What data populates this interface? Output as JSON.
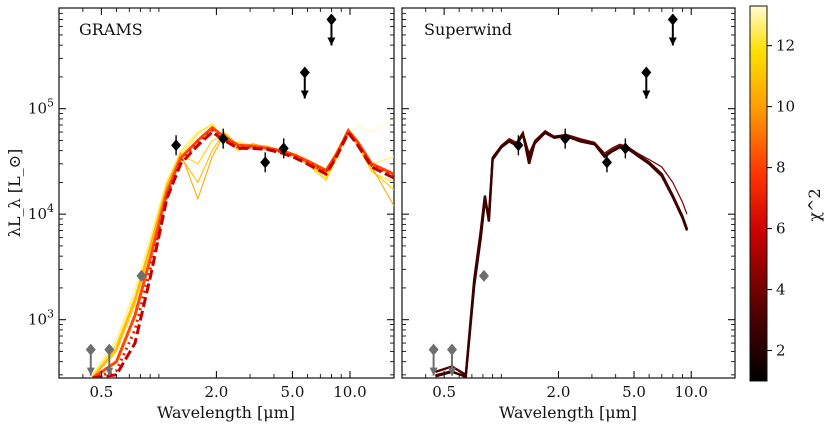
{
  "chart_data": {
    "type": "line",
    "shared": {
      "xscale": "log",
      "yscale": "log",
      "xlim": [
        0.3,
        17
      ],
      "ylim": [
        280,
        900000
      ],
      "xticks": [
        0.5,
        2.0,
        5.0,
        10.0
      ],
      "xtick_labels": [
        "0.5",
        "2.0",
        "5.0",
        "10.0"
      ],
      "yticks": [
        1000,
        10000,
        100000
      ],
      "ytick_labels": [
        "10^3",
        "10^4",
        "10^5"
      ],
      "xlabel": "Wavelength [μm]",
      "ylabel": "λL_λ [L_⊙]"
    },
    "panels": [
      {
        "title": "GRAMS",
        "series": [
          {
            "name": "grams-model-01",
            "chi2": 13.2,
            "x": [
              0.45,
              0.6,
              0.75,
              0.9,
              1.1,
              1.3,
              1.6,
              1.9,
              2.2,
              2.6,
              3.1,
              3.7,
              4.4,
              5.2,
              6.2,
              7.5,
              8.5,
              9.8,
              11,
              13,
              17
            ],
            "y": [
              300,
              600,
              1700,
              5500,
              20000,
              38000,
              62000,
              70000,
              52000,
              46000,
              42000,
              44000,
              41000,
              38000,
              32000,
              28000,
              30000,
              55000,
              70000,
              60000,
              80000
            ]
          },
          {
            "name": "grams-model-02",
            "chi2": 12.6,
            "x": [
              0.45,
              0.6,
              0.75,
              0.9,
              1.1,
              1.3,
              1.6,
              1.9,
              2.2,
              2.6,
              3.1,
              3.7,
              4.4,
              5.2,
              6.2,
              7.5,
              8.5,
              9.8,
              11,
              13,
              17
            ],
            "y": [
              300,
              650,
              1900,
              6000,
              21000,
              40000,
              60000,
              68000,
              55000,
              47000,
              44000,
              43000,
              40000,
              37000,
              30000,
              26000,
              40000,
              60000,
              50000,
              30000,
              35000
            ]
          },
          {
            "name": "grams-model-03",
            "chi2": 12.0,
            "x": [
              0.45,
              0.6,
              0.75,
              0.9,
              1.1,
              1.3,
              1.6,
              1.9,
              2.2,
              2.6,
              3.1,
              3.7,
              4.4,
              5.2,
              6.2,
              7.5,
              8.5,
              9.8,
              11,
              13,
              17
            ],
            "y": [
              280,
              520,
              1500,
              4800,
              18000,
              36000,
              58000,
              72000,
              50000,
              48000,
              45000,
              42000,
              39000,
              36000,
              29000,
              22000,
              35000,
              62000,
              45000,
              25000,
              20000
            ]
          },
          {
            "name": "grams-model-04",
            "chi2": 11.4,
            "x": [
              0.45,
              0.6,
              0.75,
              0.9,
              1.1,
              1.3,
              1.6,
              1.9,
              2.2,
              2.6,
              3.1,
              3.7,
              4.4,
              5.2,
              6.2,
              7.5,
              8.5,
              9.8,
              11,
              13,
              17
            ],
            "y": [
              290,
              580,
              1650,
              5200,
              19500,
              37000,
              30000,
              50000,
              56000,
              40000,
              47000,
              42000,
              38000,
              35000,
              28000,
              21000,
              34000,
              64000,
              43000,
              26000,
              17000
            ]
          },
          {
            "name": "grams-model-05",
            "chi2": 10.9,
            "x": [
              0.45,
              0.6,
              0.75,
              0.9,
              1.1,
              1.3,
              1.6,
              1.9,
              2.2,
              2.6,
              3.1,
              3.7,
              4.4,
              5.2,
              6.2,
              7.5,
              8.5,
              9.8,
              11,
              13,
              17
            ],
            "y": [
              280,
              500,
              1400,
              4600,
              17500,
              35000,
              20000,
              40000,
              60000,
              45000,
              46000,
              41000,
              39000,
              35000,
              29000,
              24000,
              38000,
              63000,
              46000,
              29000,
              24000
            ]
          },
          {
            "name": "grams-model-06",
            "chi2": 10.3,
            "x": [
              0.45,
              0.6,
              0.75,
              0.9,
              1.1,
              1.3,
              1.6,
              1.9,
              2.2,
              2.6,
              3.1,
              3.7,
              4.4,
              5.2,
              6.2,
              7.5,
              8.5,
              9.8,
              11,
              13,
              17
            ],
            "y": [
              280,
              540,
              1550,
              5000,
              18500,
              38000,
              14000,
              35000,
              58000,
              44000,
              46000,
              44000,
              40000,
              36000,
              30000,
              25000,
              36000,
              61000,
              47000,
              28000,
              12000
            ]
          },
          {
            "name": "grams-model-07",
            "chi2": 8.2,
            "x": [
              0.45,
              0.6,
              0.75,
              0.9,
              1.1,
              1.3,
              1.6,
              1.9,
              2.2,
              2.6,
              3.1,
              3.7,
              4.4,
              5.2,
              6.2,
              7.5,
              8.5,
              9.8,
              11,
              13,
              17
            ],
            "y": [
              280,
              400,
              1100,
              3800,
              16000,
              34000,
              50000,
              66000,
              54000,
              45000,
              44000,
              42000,
              40000,
              36000,
              31000,
              26000,
              37000,
              62000,
              48000,
              30000,
              24000
            ]
          },
          {
            "name": "grams-model-08",
            "chi2": 7.0,
            "x": [
              0.45,
              0.6,
              0.75,
              0.9,
              1.1,
              1.3,
              1.6,
              1.9,
              2.2,
              2.6,
              3.1,
              3.7,
              4.4,
              5.2,
              6.2,
              7.5,
              8.5,
              9.8,
              11,
              13,
              17
            ],
            "y": [
              280,
              330,
              800,
              3000,
              15000,
              32000,
              48000,
              62000,
              52000,
              43000,
              43000,
              42000,
              39000,
              35000,
              30000,
              25000,
              36000,
              60000,
              46000,
              29000,
              23000
            ]
          },
          {
            "name": "grams-model-09",
            "chi2": 5.8,
            "x": [
              0.45,
              0.6,
              0.75,
              0.9,
              1.1,
              1.3,
              1.6,
              1.9,
              2.2,
              2.6,
              3.1,
              3.7,
              4.4,
              5.2,
              6.2,
              7.5,
              8.5,
              9.8,
              11,
              13,
              17
            ],
            "y": [
              280,
              300,
              600,
              2500,
              14000,
              30000,
              45000,
              60000,
              50000,
              42000,
              42000,
              41000,
              38000,
              34000,
              29000,
              24000,
              35000,
              59000,
              45000,
              28000,
              22000
            ]
          }
        ],
        "points": [
          {
            "name": "photometry",
            "x": [
              1.23,
              2.17,
              3.6,
              4.5
            ],
            "y": [
              45000,
              52000,
              31000,
              42000
            ]
          },
          {
            "name": "upper-limit-black",
            "x": [
              5.8,
              8.0
            ],
            "y": [
              220000,
              700000
            ]
          },
          {
            "name": "photometry-grey",
            "x": [
              0.81
            ],
            "y": [
              2600
            ]
          },
          {
            "name": "upper-limit-grey",
            "x": [
              0.44,
              0.55
            ],
            "y": [
              520,
              520
            ]
          }
        ]
      },
      {
        "title": "Superwind",
        "series": [
          {
            "name": "superwind-model-01",
            "chi2": 4.0,
            "x": [
              0.45,
              0.55,
              0.65,
              0.72,
              0.78,
              0.82,
              0.86,
              0.9,
              1.0,
              1.1,
              1.2,
              1.3,
              1.4,
              1.5,
              1.7,
              1.9,
              2.2,
              2.6,
              3.1,
              3.5,
              3.8,
              4.2,
              4.6,
              5.2,
              6,
              7,
              8,
              9,
              9.5
            ],
            "y": [
              300,
              330,
              280,
              2200,
              6500,
              14000,
              9000,
              35000,
              45000,
              52000,
              48000,
              60000,
              38000,
              50000,
              62000,
              55000,
              57000,
              52000,
              48000,
              38000,
              42000,
              46000,
              44000,
              38000,
              33000,
              28000,
              20000,
              13000,
              10000
            ]
          },
          {
            "name": "superwind-model-02",
            "chi2": 3.2,
            "x": [
              0.45,
              0.55,
              0.65,
              0.72,
              0.78,
              0.82,
              0.86,
              0.9,
              1.0,
              1.1,
              1.2,
              1.3,
              1.4,
              1.5,
              1.7,
              1.9,
              2.2,
              2.6,
              3.1,
              3.5,
              3.8,
              4.2,
              4.6,
              5.2,
              6,
              7,
              8,
              9,
              9.5
            ],
            "y": [
              320,
              360,
              300,
              2400,
              7000,
              15000,
              8500,
              34000,
              44000,
              50000,
              46000,
              58000,
              30000,
              48000,
              60000,
              54000,
              56000,
              50000,
              47000,
              36000,
              40000,
              44000,
              43000,
              37000,
              31000,
              24000,
              15000,
              9500,
              7200
            ]
          },
          {
            "name": "superwind-model-03",
            "chi2": 2.6,
            "x": [
              0.45,
              0.55,
              0.65,
              0.72,
              0.78,
              0.82,
              0.86,
              0.9,
              1.0,
              1.1,
              1.2,
              1.3,
              1.4,
              1.5,
              1.7,
              1.9,
              2.2,
              2.6,
              3.1,
              3.5,
              3.8,
              4.2,
              4.6,
              5.2,
              6,
              7,
              8,
              9,
              9.5
            ],
            "y": [
              290,
              320,
              290,
              2100,
              6000,
              13500,
              9500,
              33000,
              43000,
              49000,
              45000,
              57000,
              35000,
              47000,
              59000,
              53000,
              55000,
              49000,
              46000,
              35000,
              39000,
              43000,
              42000,
              36000,
              30000,
              23000,
              14500,
              9200,
              7000
            ]
          }
        ],
        "points": [
          {
            "name": "photometry",
            "x": [
              1.23,
              2.17,
              3.6,
              4.5
            ],
            "y": [
              45000,
              52000,
              31000,
              42000
            ]
          },
          {
            "name": "upper-limit-black",
            "x": [
              5.8,
              8.0
            ],
            "y": [
              220000,
              700000
            ]
          },
          {
            "name": "photometry-grey",
            "x": [
              0.81
            ],
            "y": [
              2600
            ]
          },
          {
            "name": "upper-limit-grey",
            "x": [
              0.44,
              0.55
            ],
            "y": [
              520,
              520
            ]
          }
        ]
      }
    ],
    "colorbar": {
      "label": "χ^2",
      "colormap": "hot",
      "vmin": 1,
      "vmax": 13.3,
      "ticks": [
        2,
        4,
        6,
        8,
        10,
        12
      ],
      "tick_labels": [
        "2",
        "4",
        "6",
        "8",
        "10",
        "12"
      ]
    }
  }
}
